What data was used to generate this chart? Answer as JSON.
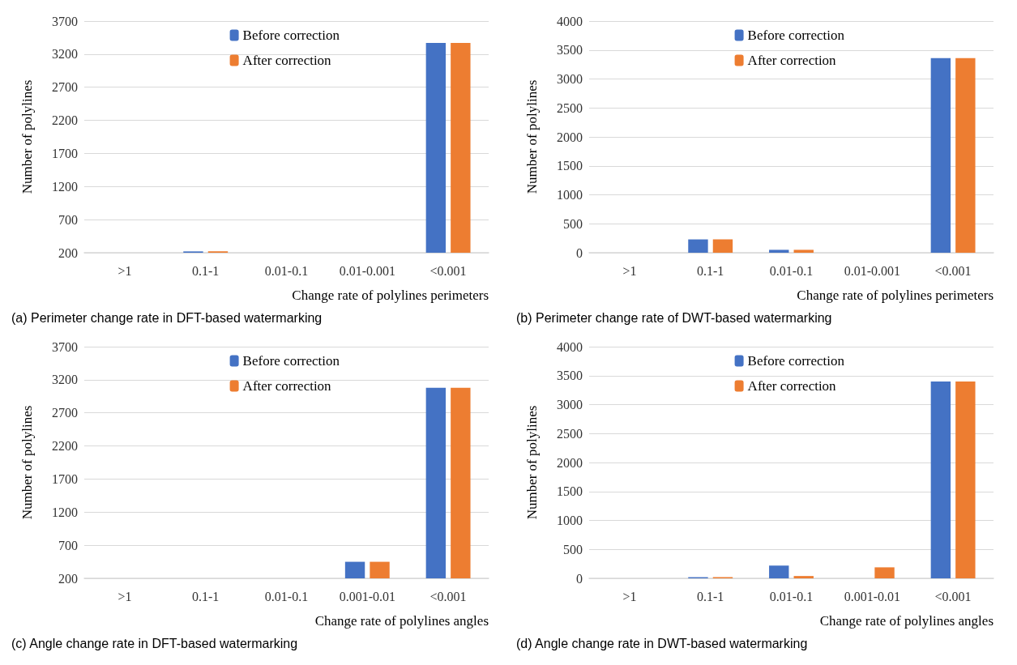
{
  "chart_data": [
    {
      "type": "bar",
      "xlabel": "Change rate of polylines perimeters",
      "ylabel": "Number of polylines",
      "annotations": [
        "(a) Perimeter change rate in DFT-based watermarking"
      ],
      "categories": [
        ">1",
        "0.1-1",
        "0.01-0.1",
        "0.01-0.001",
        "<0.001"
      ],
      "series": [
        {
          "name": "Before correction",
          "color": "#4472c4",
          "values": [
            200,
            220,
            200,
            200,
            3370
          ]
        },
        {
          "name": "After correction",
          "color": "#ed7d31",
          "values": [
            200,
            220,
            200,
            200,
            3370
          ]
        }
      ],
      "ylim": [
        200,
        3700
      ],
      "yticks": [
        200,
        700,
        1200,
        1700,
        2200,
        2700,
        3200,
        3700
      ],
      "grid": "y",
      "legend": "top"
    },
    {
      "type": "bar",
      "xlabel": "Change rate of polylines perimeters",
      "ylabel": "Number of polylines",
      "annotations": [
        "(b) Perimeter change rate of DWT-based watermarking"
      ],
      "categories": [
        ">1",
        "0.1-1",
        "0.01-0.1",
        "0.01-0.001",
        "<0.001"
      ],
      "series": [
        {
          "name": "Before correction",
          "color": "#4472c4",
          "values": [
            0,
            230,
            50,
            0,
            3360
          ]
        },
        {
          "name": "After correction",
          "color": "#ed7d31",
          "values": [
            0,
            230,
            50,
            0,
            3360
          ]
        }
      ],
      "ylim": [
        0,
        4000
      ],
      "yticks": [
        0,
        500,
        1000,
        1500,
        2000,
        2500,
        3000,
        3500,
        4000
      ],
      "grid": "y",
      "legend": "top"
    },
    {
      "type": "bar",
      "xlabel": "Change rate of polylines angles",
      "ylabel": "Number of polylines",
      "annotations": [
        "(c) Angle change rate in DFT-based watermarking"
      ],
      "categories": [
        ">1",
        "0.1-1",
        "0.01-0.1",
        "0.001-0.01",
        "<0.001"
      ],
      "series": [
        {
          "name": "Before correction",
          "color": "#4472c4",
          "values": [
            200,
            200,
            200,
            450,
            3080
          ]
        },
        {
          "name": "After correction",
          "color": "#ed7d31",
          "values": [
            200,
            200,
            200,
            450,
            3080
          ]
        }
      ],
      "ylim": [
        200,
        3700
      ],
      "yticks": [
        200,
        700,
        1200,
        1700,
        2200,
        2700,
        3200,
        3700
      ],
      "grid": "y",
      "legend": "top"
    },
    {
      "type": "bar",
      "xlabel": "Change rate of polylines angles",
      "ylabel": "Number of polylines",
      "annotations": [
        "(d) Angle change rate in DWT-based watermarking"
      ],
      "categories": [
        ">1",
        "0.1-1",
        "0.01-0.1",
        "0.001-0.01",
        "<0.001"
      ],
      "series": [
        {
          "name": "Before correction",
          "color": "#4472c4",
          "values": [
            0,
            20,
            220,
            0,
            3400
          ]
        },
        {
          "name": "After correction",
          "color": "#ed7d31",
          "values": [
            0,
            20,
            40,
            190,
            3400
          ]
        }
      ],
      "ylim": [
        0,
        4000
      ],
      "yticks": [
        0,
        500,
        1000,
        1500,
        2000,
        2500,
        3000,
        3500,
        4000
      ],
      "grid": "y",
      "legend": "top"
    }
  ]
}
